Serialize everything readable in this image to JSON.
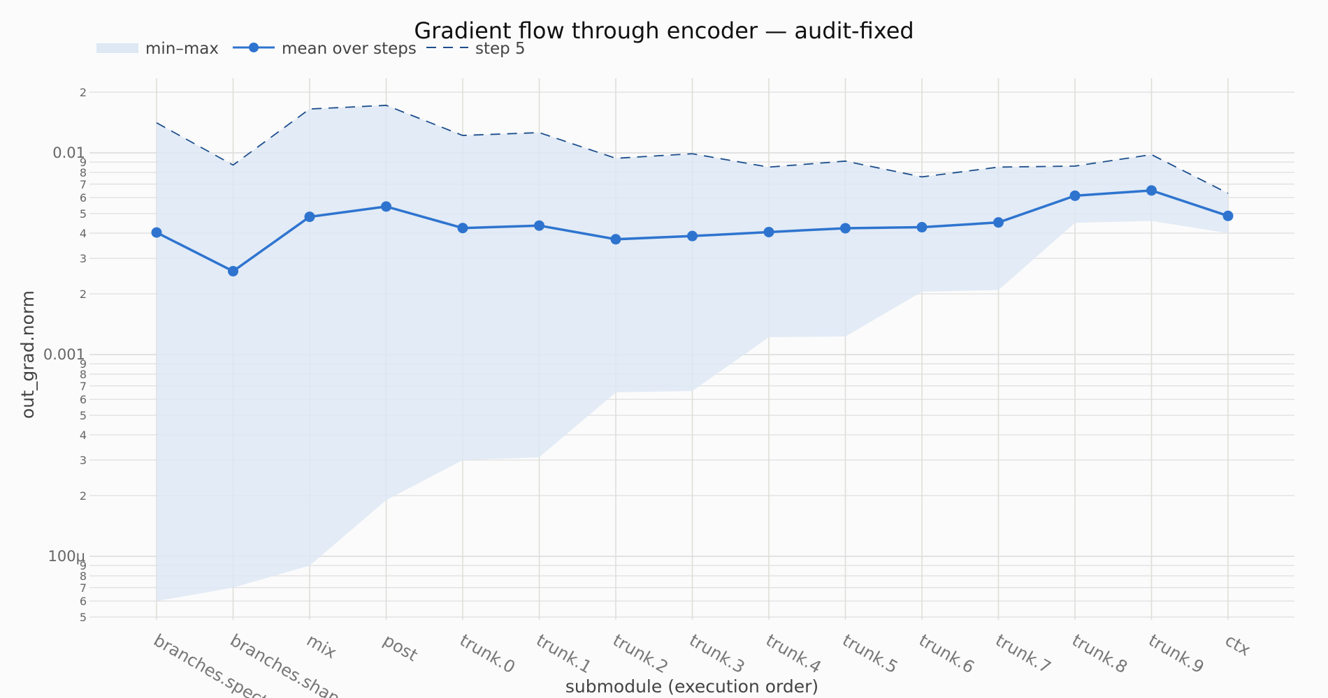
{
  "chart_data": {
    "type": "line",
    "title": "Gradient flow through encoder — audit-fixed",
    "xlabel": "submodule (execution order)",
    "ylabel": "out_grad.norm",
    "yscale": "log",
    "ylim": [
      4.5e-05,
      0.025
    ],
    "grid": true,
    "legend_position": "top-left",
    "categories": [
      "branches.spectral",
      "branches.shape",
      "mix",
      "post",
      "trunk.0",
      "trunk.1",
      "trunk.2",
      "trunk.3",
      "trunk.4",
      "trunk.5",
      "trunk.6",
      "trunk.7",
      "trunk.8",
      "trunk.9",
      "ctx"
    ],
    "y_major_ticks": [
      {
        "value": 0.01,
        "label": "0.01"
      },
      {
        "value": 0.001,
        "label": "0.001"
      },
      {
        "value": 0.0001,
        "label": "100μ"
      }
    ],
    "y_minor_ticks": [
      {
        "value": 0.02,
        "label": "2"
      },
      {
        "value": 0.009,
        "label": "9"
      },
      {
        "value": 0.008,
        "label": "8"
      },
      {
        "value": 0.007,
        "label": "7"
      },
      {
        "value": 0.006,
        "label": "6"
      },
      {
        "value": 0.005,
        "label": "5"
      },
      {
        "value": 0.004,
        "label": "4"
      },
      {
        "value": 0.003,
        "label": "3"
      },
      {
        "value": 0.002,
        "label": "2"
      },
      {
        "value": 0.0009,
        "label": "9"
      },
      {
        "value": 0.0008,
        "label": "8"
      },
      {
        "value": 0.0007,
        "label": "7"
      },
      {
        "value": 0.0006,
        "label": "6"
      },
      {
        "value": 0.0005,
        "label": "5"
      },
      {
        "value": 0.0004,
        "label": "4"
      },
      {
        "value": 0.0003,
        "label": "3"
      },
      {
        "value": 0.0002,
        "label": "2"
      },
      {
        "value": 9e-05,
        "label": "9"
      },
      {
        "value": 8e-05,
        "label": "8"
      },
      {
        "value": 7e-05,
        "label": "7"
      },
      {
        "value": 6e-05,
        "label": "6"
      },
      {
        "value": 5e-05,
        "label": "5"
      }
    ],
    "series": [
      {
        "name": "min–max",
        "kind": "band",
        "color": "#dde8f4",
        "min": [
          6e-05,
          7e-05,
          9e-05,
          0.00019,
          0.0003,
          0.00031,
          0.00065,
          0.00066,
          0.00122,
          0.00123,
          0.00205,
          0.00209,
          0.0045,
          0.0046,
          0.004
        ],
        "max": [
          0.0141,
          0.0087,
          0.0165,
          0.0172,
          0.0122,
          0.0126,
          0.0094,
          0.0099,
          0.0085,
          0.0091,
          0.0076,
          0.0085,
          0.0086,
          0.0098,
          0.0063
        ]
      },
      {
        "name": "mean over steps",
        "kind": "line-markers",
        "color": "#2e74cf",
        "values": [
          0.00403,
          0.00259,
          0.00482,
          0.00542,
          0.00424,
          0.00436,
          0.00373,
          0.00387,
          0.00405,
          0.00423,
          0.00428,
          0.00452,
          0.00613,
          0.00651,
          0.00487
        ]
      },
      {
        "name": "step 5",
        "kind": "dashed-line",
        "color": "#1d4e8c",
        "values": [
          0.0141,
          0.0087,
          0.0165,
          0.0172,
          0.0122,
          0.0126,
          0.0094,
          0.0099,
          0.0085,
          0.0091,
          0.0076,
          0.0085,
          0.0086,
          0.0098,
          0.0063
        ]
      }
    ]
  }
}
